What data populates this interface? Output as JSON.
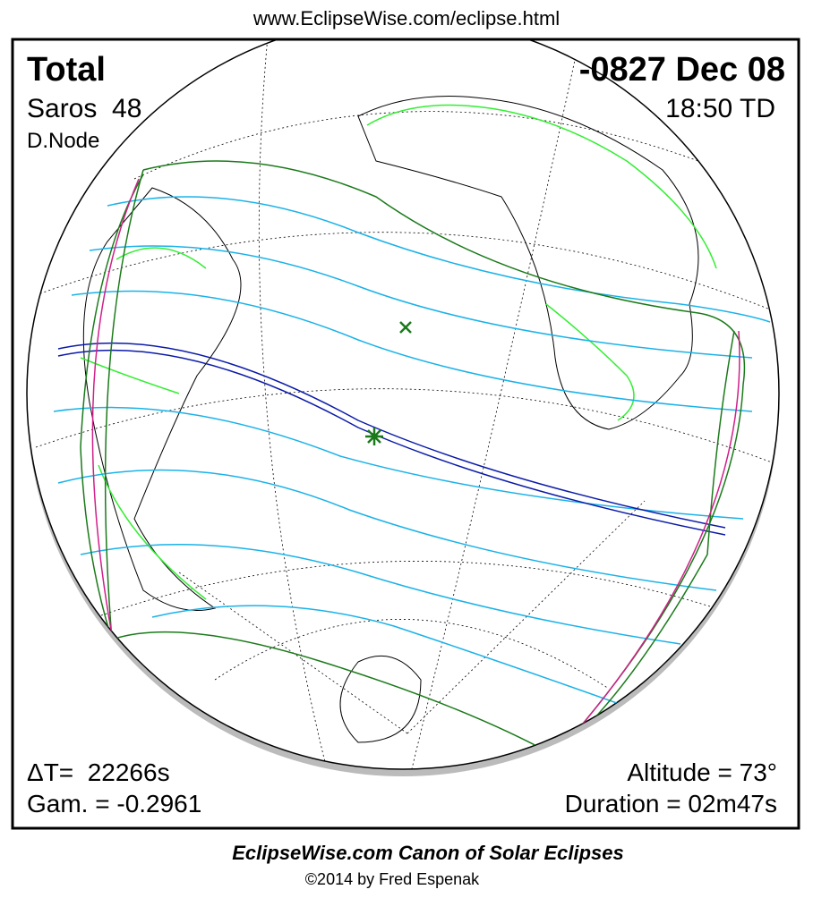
{
  "header": {
    "url": "www.EclipseWise.com/eclipse.html"
  },
  "eclipse": {
    "type": "Total",
    "date": "-0827 Dec 08",
    "saros": "Saros  48",
    "time": "18:50 TD",
    "node": "D.Node",
    "delta_t": "ΔT=  22266s",
    "gamma": "Gam. = -0.2961",
    "altitude": "Altitude = 73°",
    "duration": "Duration = 02m47s"
  },
  "footer": {
    "title": "EclipseWise.com Canon of Solar Eclipses",
    "copyright": "©2014 by Fred Espenak"
  }
}
